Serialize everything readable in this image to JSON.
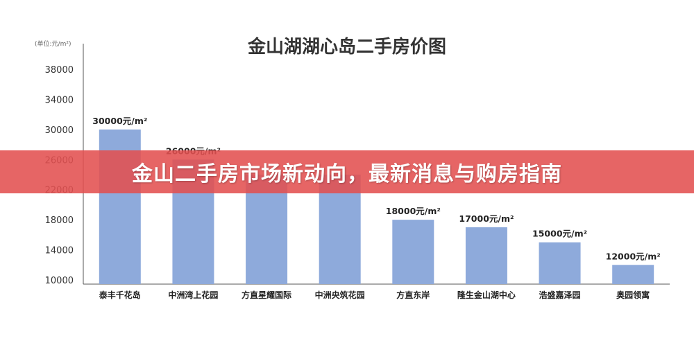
{
  "banner": {
    "text": "金山二手房市场新动向，最新消息与购房指南"
  },
  "colors": {
    "bar": "#8eaadb",
    "banner": "#e25050",
    "axis": "#555555"
  },
  "chart_data": {
    "type": "bar",
    "title": "金山湖湖心岛二手房价图",
    "unit_label": "(单位:元/m²)",
    "categories": [
      "泰丰千花岛",
      "中洲湾上花园",
      "方直星耀国际",
      "中洲央筑花园",
      "方直东岸",
      "隆生金山湖中心",
      "浩盛嘉泽园",
      "奥园领寓"
    ],
    "values": [
      30000,
      26000,
      24000,
      24000,
      18000,
      17000,
      15000,
      12000
    ],
    "data_labels": [
      "30000元/m²",
      "26000元/m²",
      "",
      "",
      "18000元/m²",
      "17000元/m²",
      "15000元/m²",
      "12000元/m²"
    ],
    "y_ticks": [
      10000,
      14000,
      18000,
      22000,
      26000,
      30000,
      34000,
      38000
    ],
    "ylim": [
      10000,
      40000
    ],
    "grid": false,
    "legend": "none"
  }
}
